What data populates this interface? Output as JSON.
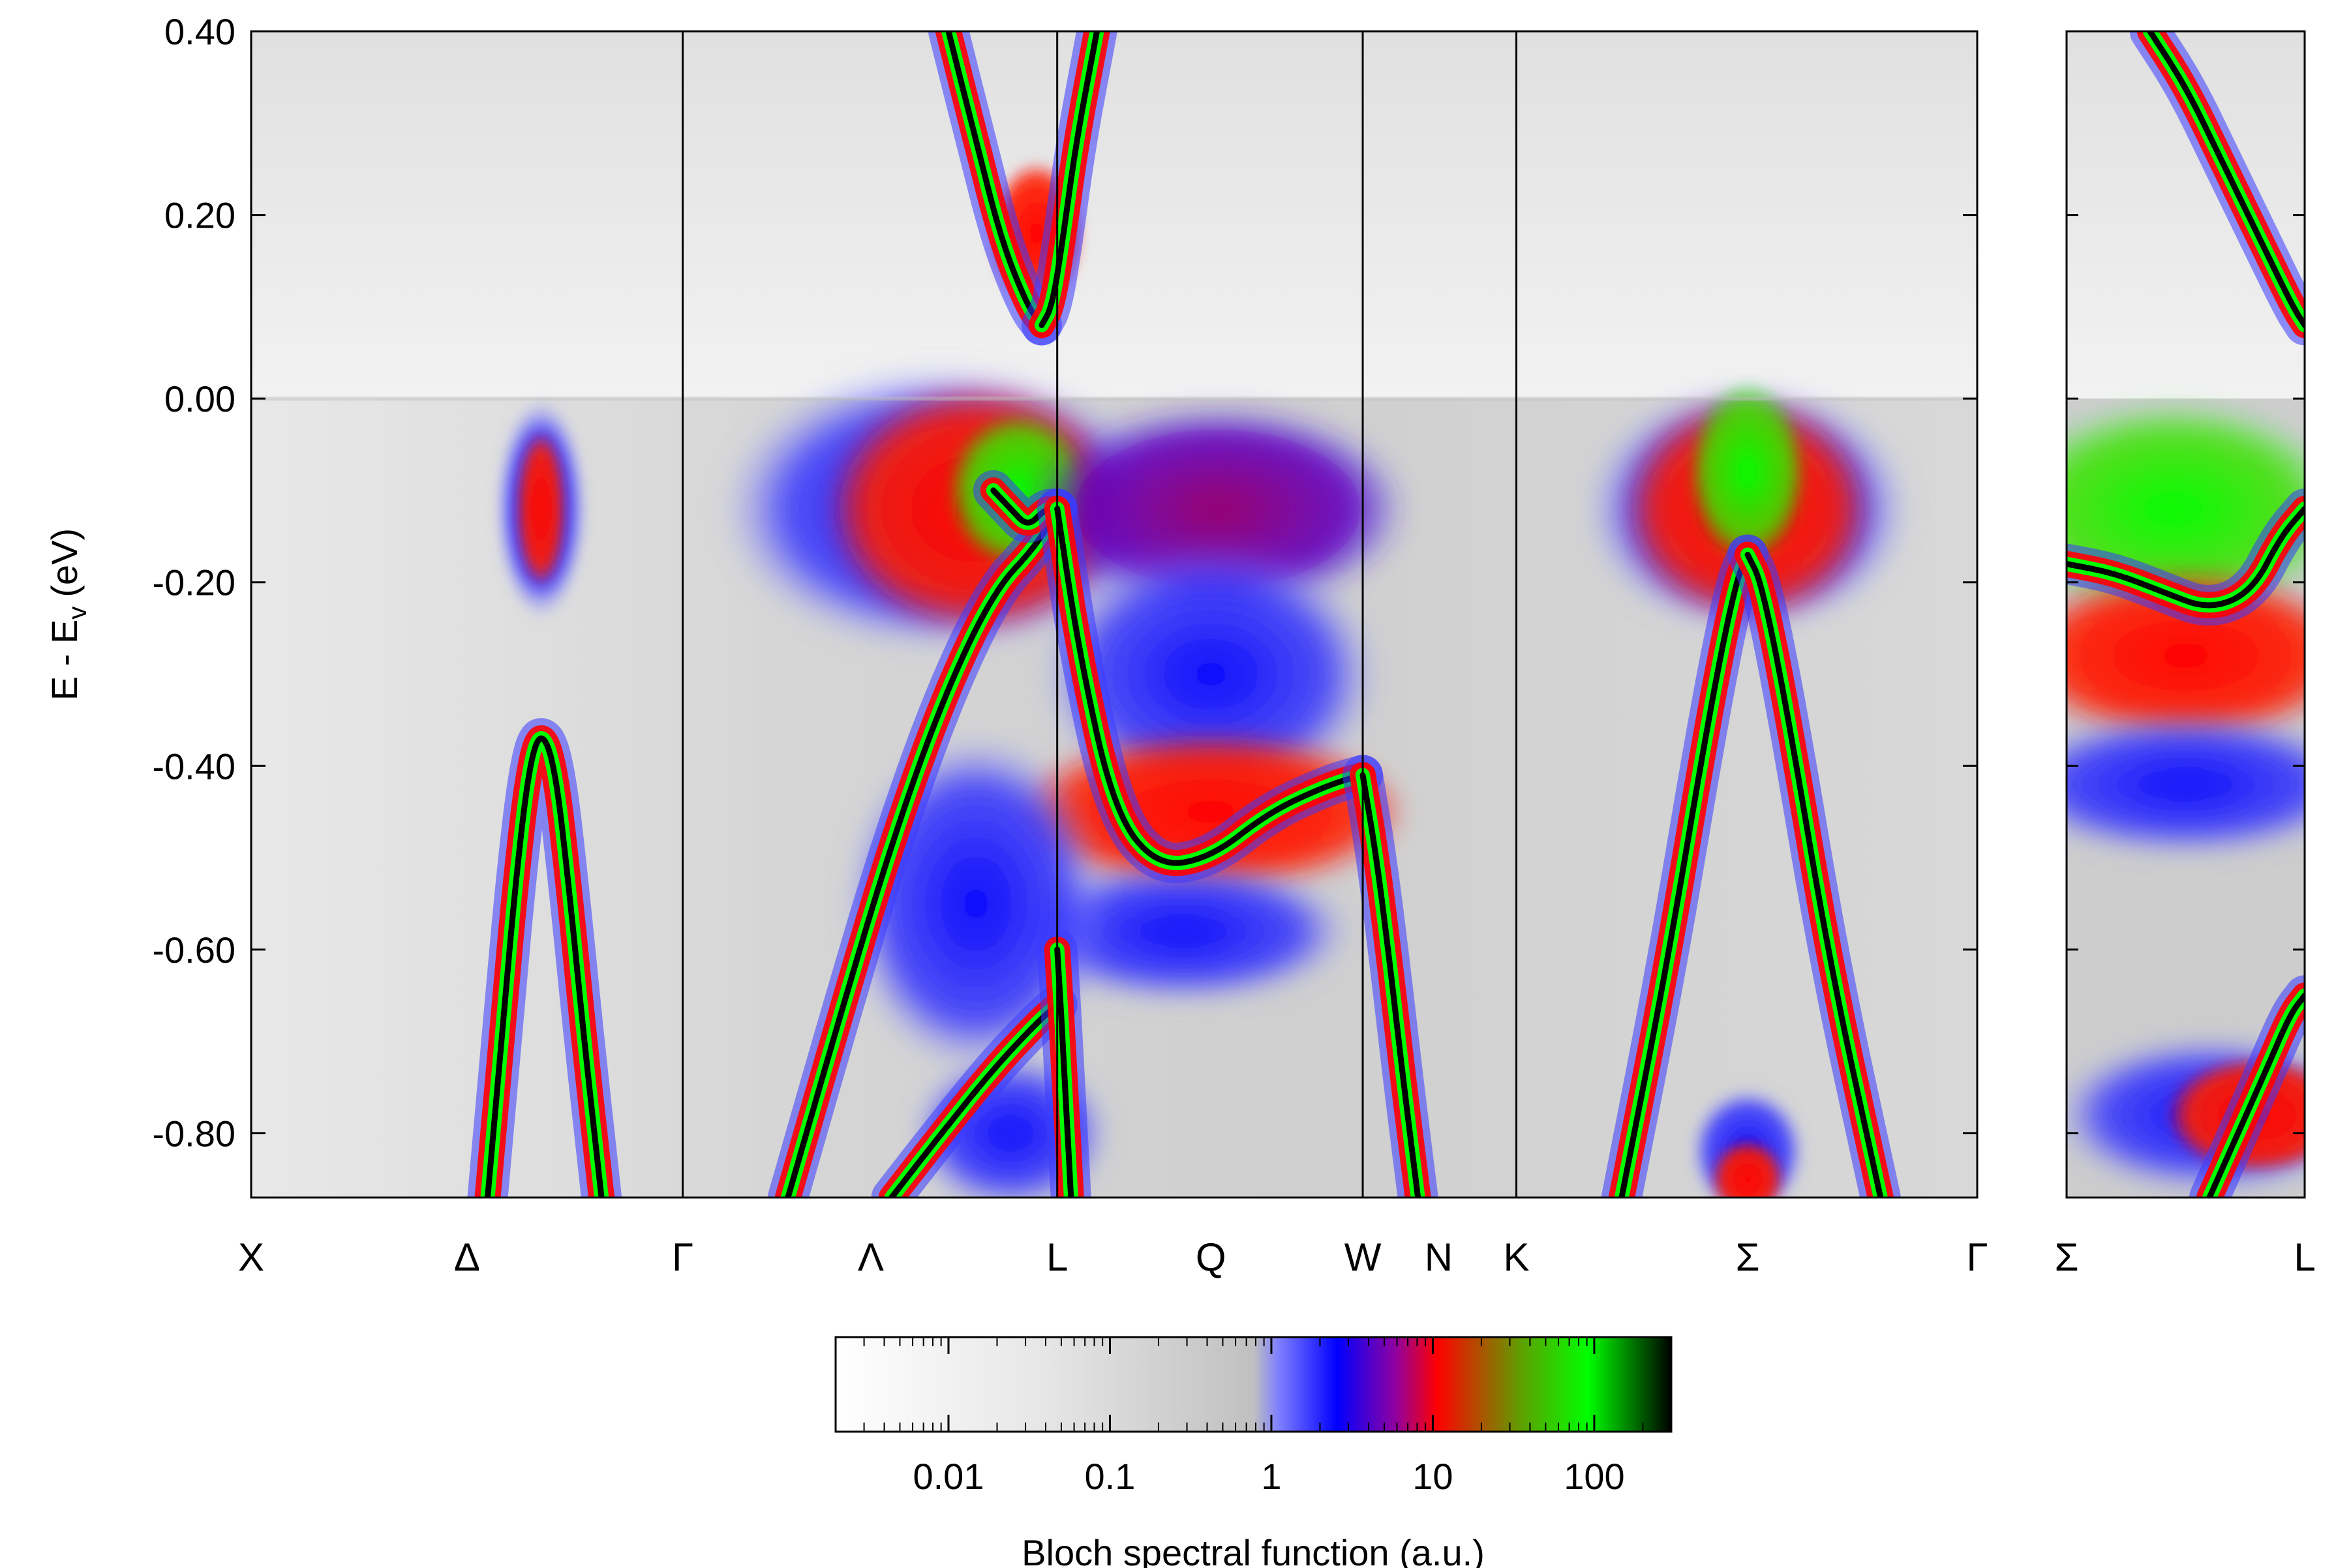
{
  "chart_data": {
    "type": "heatmap",
    "title": "",
    "ylabel": "E - E",
    "ylabel_subscript": "v",
    "ylabel_unit": "(eV)",
    "ylim": [
      -0.87,
      0.4
    ],
    "yticks": [
      "0.40",
      "0.20",
      "0.00",
      "-0.20",
      "-0.40",
      "-0.60",
      "-0.80"
    ],
    "ytick_values": [
      0.4,
      0.2,
      0.0,
      -0.2,
      -0.4,
      -0.6,
      -0.8
    ],
    "grid": false,
    "panels": [
      {
        "name": "main",
        "kpoints": [
          "X",
          "Δ",
          "Γ",
          "Λ",
          "L",
          "Q",
          "W",
          "N",
          "K",
          "Σ",
          "Γ"
        ],
        "kpoint_types": [
          "edge",
          "mid",
          "line",
          "mid",
          "line",
          "mid",
          "line",
          "mid",
          "line",
          "mid",
          "edge"
        ],
        "k_positions": [
          0,
          0.125,
          0.25,
          0.359,
          0.467,
          0.556,
          0.644,
          0.688,
          0.733,
          0.867,
          1.0
        ]
      },
      {
        "name": "inset",
        "kpoints": [
          "Σ",
          "L"
        ],
        "kpoint_types": [
          "edge",
          "edge"
        ],
        "k_positions": [
          0,
          1.0
        ]
      }
    ],
    "bands": {
      "main": [
        {
          "name": "delta-band",
          "k": [
            0.137,
            0.145,
            0.153,
            0.161,
            0.168,
            0.176,
            0.184,
            0.193,
            0.203
          ],
          "E": [
            -0.87,
            -0.7,
            -0.53,
            -0.4,
            -0.36,
            -0.4,
            -0.53,
            -0.7,
            -0.87
          ]
        },
        {
          "name": "lambda-heavy",
          "k": [
            0.311,
            0.34,
            0.37,
            0.4,
            0.43,
            0.455,
            0.467
          ],
          "E": [
            -0.87,
            -0.68,
            -0.49,
            -0.33,
            -0.21,
            -0.16,
            -0.12
          ]
        },
        {
          "name": "lambda-lower",
          "k": [
            0.371,
            0.4,
            0.43,
            0.455,
            0.467
          ],
          "E": [
            -0.87,
            -0.8,
            -0.73,
            -0.68,
            -0.66
          ]
        },
        {
          "name": "lambda-light",
          "k": [
            0.43,
            0.44,
            0.45,
            0.46,
            0.467
          ],
          "E": [
            -0.1,
            -0.12,
            -0.14,
            -0.12,
            -0.12
          ]
        },
        {
          "name": "L-W-heavy",
          "k": [
            0.467,
            0.48,
            0.5,
            0.525,
            0.556,
            0.59,
            0.625,
            0.644
          ],
          "E": [
            -0.12,
            -0.28,
            -0.45,
            -0.51,
            -0.5,
            -0.45,
            -0.42,
            -0.41
          ]
        },
        {
          "name": "L-light-down",
          "k": [
            0.467,
            0.469,
            0.471,
            0.473,
            0.475
          ],
          "E": [
            -0.6,
            -0.66,
            -0.73,
            -0.8,
            -0.87
          ]
        },
        {
          "name": "W-N-band",
          "k": [
            0.644,
            0.652,
            0.66,
            0.668,
            0.676
          ],
          "E": [
            -0.41,
            -0.5,
            -0.62,
            -0.75,
            -0.87
          ]
        },
        {
          "name": "sigma-band-left",
          "k": [
            0.794,
            0.82,
            0.845,
            0.86,
            0.867
          ],
          "E": [
            -0.87,
            -0.62,
            -0.34,
            -0.2,
            -0.17
          ]
        },
        {
          "name": "sigma-band-right",
          "k": [
            0.867,
            0.875,
            0.89,
            0.915,
            0.944
          ],
          "E": [
            -0.17,
            -0.2,
            -0.34,
            -0.62,
            -0.87
          ]
        },
        {
          "name": "conduction-left",
          "k": [
            0.404,
            0.42,
            0.435,
            0.45,
            0.458
          ],
          "E": [
            0.4,
            0.28,
            0.17,
            0.1,
            0.08
          ]
        },
        {
          "name": "conduction-right",
          "k": [
            0.458,
            0.464,
            0.47,
            0.478,
            0.49
          ],
          "E": [
            0.08,
            0.1,
            0.17,
            0.28,
            0.4
          ]
        }
      ],
      "inset": [
        {
          "name": "inset-upper",
          "k": [
            0,
            0.2,
            0.4,
            0.6,
            0.78,
            0.9,
            1.0
          ],
          "E": [
            -0.18,
            -0.19,
            -0.21,
            -0.23,
            -0.21,
            -0.15,
            -0.12
          ]
        },
        {
          "name": "inset-lower",
          "k": [
            0.6,
            0.72,
            0.84,
            0.94,
            1.0
          ],
          "E": [
            -0.87,
            -0.8,
            -0.73,
            -0.67,
            -0.65
          ]
        },
        {
          "name": "inset-conduction",
          "k": [
            0.35,
            0.5,
            0.65,
            0.8,
            0.95,
            1.0
          ],
          "E": [
            0.4,
            0.34,
            0.26,
            0.18,
            0.1,
            0.08
          ]
        }
      ]
    },
    "colorbar": {
      "label": "Bloch spectral function (a.u.)",
      "scale": "log",
      "range": [
        0.002,
        300
      ],
      "ticks": [
        "0.01",
        "0.1",
        "1",
        "10",
        "100"
      ],
      "tick_values": [
        0.01,
        0.1,
        1,
        10,
        100
      ],
      "colors": [
        "#ffffff",
        "#c8c8c8",
        "#0000ff",
        "#ff0000",
        "#00ff00",
        "#000000"
      ]
    }
  }
}
